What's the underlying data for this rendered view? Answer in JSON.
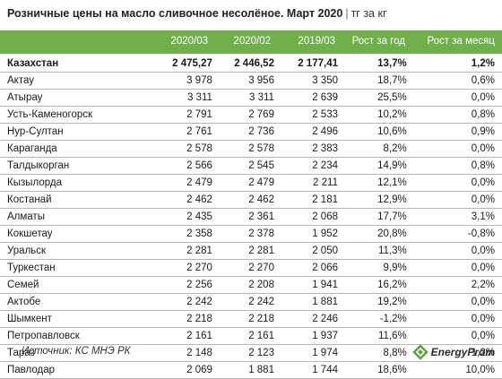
{
  "title": "Розничные цены на масло сливочное несолёное. Март 2020",
  "separator": "|",
  "unit": "тг за кг",
  "columns": [
    "2020/03",
    "2020/02",
    "2019/03",
    "Рост за год",
    "Рост за месяц"
  ],
  "rows": [
    {
      "city": "Казахстан",
      "v1": "2 475,27",
      "v2": "2 446,52",
      "v3": "2 177,41",
      "yoy": "13,7%",
      "mom": "1,2%",
      "total": true
    },
    {
      "city": "Актау",
      "v1": "3 978",
      "v2": "3 956",
      "v3": "3 350",
      "yoy": "18,7%",
      "mom": "0,6%"
    },
    {
      "city": "Атырау",
      "v1": "3 311",
      "v2": "3 311",
      "v3": "2 639",
      "yoy": "25,5%",
      "mom": "0,0%"
    },
    {
      "city": "Усть-Каменогорск",
      "v1": "2 791",
      "v2": "2 769",
      "v3": "2 533",
      "yoy": "10,2%",
      "mom": "0,8%"
    },
    {
      "city": "Нур-Султан",
      "v1": "2 761",
      "v2": "2 736",
      "v3": "2 496",
      "yoy": "10,6%",
      "mom": "0,9%"
    },
    {
      "city": "Караганда",
      "v1": "2 578",
      "v2": "2 578",
      "v3": "2 383",
      "yoy": "8,2%",
      "mom": "0,0%"
    },
    {
      "city": "Талдыкорган",
      "v1": "2 566",
      "v2": "2 545",
      "v3": "2 234",
      "yoy": "14,9%",
      "mom": "0,8%"
    },
    {
      "city": "Кызылорда",
      "v1": "2 479",
      "v2": "2 479",
      "v3": "2 211",
      "yoy": "12,1%",
      "mom": "0,0%"
    },
    {
      "city": "Костанай",
      "v1": "2 462",
      "v2": "2 462",
      "v3": "2 181",
      "yoy": "12,9%",
      "mom": "0,0%"
    },
    {
      "city": "Алматы",
      "v1": "2 435",
      "v2": "2 361",
      "v3": "2 068",
      "yoy": "17,7%",
      "mom": "3,1%"
    },
    {
      "city": "Кокшетау",
      "v1": "2 358",
      "v2": "2 378",
      "v3": "1 952",
      "yoy": "20,8%",
      "mom": "-0,8%"
    },
    {
      "city": "Уральск",
      "v1": "2 281",
      "v2": "2 281",
      "v3": "2 050",
      "yoy": "11,3%",
      "mom": "0,0%"
    },
    {
      "city": "Туркестан",
      "v1": "2 270",
      "v2": "2 270",
      "v3": "2 066",
      "yoy": "9,9%",
      "mom": "0,0%"
    },
    {
      "city": "Семей",
      "v1": "2 256",
      "v2": "2 208",
      "v3": "1 941",
      "yoy": "16,2%",
      "mom": "2,2%"
    },
    {
      "city": "Актобе",
      "v1": "2 242",
      "v2": "2 242",
      "v3": "1 881",
      "yoy": "19,2%",
      "mom": "0,0%"
    },
    {
      "city": "Шымкент",
      "v1": "2 218",
      "v2": "2 218",
      "v3": "2 246",
      "yoy": "-1,2%",
      "mom": "0,0%"
    },
    {
      "city": "Петропавловск",
      "v1": "2 161",
      "v2": "2 161",
      "v3": "1 937",
      "yoy": "11,6%",
      "mom": "0,0%"
    },
    {
      "city": "Тараз",
      "v1": "2 148",
      "v2": "2 123",
      "v3": "1 974",
      "yoy": "8,8%",
      "mom": "1,2%"
    },
    {
      "city": "Павлодар",
      "v1": "2 069",
      "v2": "1 881",
      "v3": "1 744",
      "yoy": "18,6%",
      "mom": "10,0%"
    }
  ],
  "footer": {
    "source": "Источник: КС МНЭ РК",
    "logo_text": "EnergyProm",
    "logo_icon": "energyprom-logo-icon"
  },
  "colors": {
    "header_bg": "#6fb04b",
    "logo_green": "#5aa33a"
  }
}
